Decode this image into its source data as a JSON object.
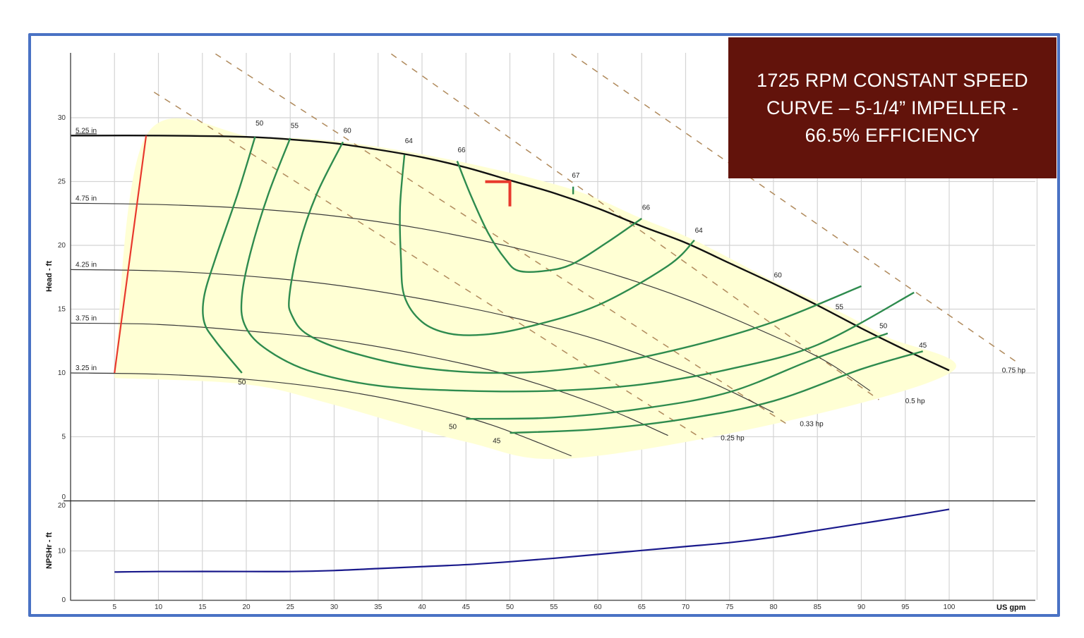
{
  "title_box": {
    "line1": "1725 RPM CONSTANT SPEED",
    "line2": "CURVE – 5-1/4” IMPELLER -",
    "line3": "66.5% EFFICIENCY",
    "background": "#62130b"
  },
  "colors": {
    "frame_border": "#4a72c4",
    "grid": "#d4d4d4",
    "impeller": "#3a3a3a",
    "max_impeller": "#111111",
    "efficiency": "#2e8b4e",
    "power": "#b08a5c",
    "min_flow": "#e8392d",
    "operating_region": "#ffffd4",
    "npsh": "#1a1a8c",
    "marker": "#e8392d"
  },
  "chart_data": [
    {
      "type": "line",
      "title": "Pump performance curve (Head vs Flow)",
      "xlabel": "US gpm",
      "ylabel": "Head - ft",
      "xlim": [
        0,
        110
      ],
      "ylim": [
        0,
        35
      ],
      "x_ticks": [
        5,
        10,
        15,
        20,
        25,
        30,
        35,
        40,
        45,
        50,
        55,
        60,
        65,
        70,
        75,
        80,
        85,
        90,
        95,
        100
      ],
      "y_ticks": [
        0,
        5,
        10,
        15,
        20,
        25,
        30
      ],
      "grid": true,
      "impeller_curves": [
        {
          "name": "5.25 in",
          "points": [
            [
              0,
              28.6
            ],
            [
              10,
              28.6
            ],
            [
              20,
              28.5
            ],
            [
              25,
              28.3
            ],
            [
              30,
              28.0
            ],
            [
              35,
              27.5
            ],
            [
              40,
              26.9
            ],
            [
              45,
              26.1
            ],
            [
              50,
              25.1
            ],
            [
              55,
              24.1
            ],
            [
              60,
              22.9
            ],
            [
              65,
              21.5
            ],
            [
              70,
              20.2
            ],
            [
              75,
              18.6
            ],
            [
              80,
              17.0
            ],
            [
              85,
              15.3
            ],
            [
              90,
              13.5
            ],
            [
              95,
              11.8
            ],
            [
              100,
              10.2
            ]
          ]
        },
        {
          "name": "4.75 in",
          "points": [
            [
              0,
              23.3
            ],
            [
              10,
              23.2
            ],
            [
              20,
              22.9
            ],
            [
              30,
              22.3
            ],
            [
              40,
              21.3
            ],
            [
              50,
              19.9
            ],
            [
              60,
              18.1
            ],
            [
              70,
              15.8
            ],
            [
              80,
              12.9
            ],
            [
              86,
              10.9
            ],
            [
              91,
              8.6
            ]
          ]
        },
        {
          "name": "4.25 in",
          "points": [
            [
              0,
              18.1
            ],
            [
              10,
              18.0
            ],
            [
              20,
              17.6
            ],
            [
              30,
              16.9
            ],
            [
              40,
              15.8
            ],
            [
              50,
              14.4
            ],
            [
              60,
              12.6
            ],
            [
              70,
              10.1
            ],
            [
              75,
              8.6
            ],
            [
              80,
              6.9
            ]
          ]
        },
        {
          "name": "3.75 in",
          "points": [
            [
              0,
              13.9
            ],
            [
              10,
              13.8
            ],
            [
              20,
              13.3
            ],
            [
              30,
              12.6
            ],
            [
              40,
              11.4
            ],
            [
              50,
              9.8
            ],
            [
              60,
              7.5
            ],
            [
              68,
              5.1
            ]
          ]
        },
        {
          "name": "3.25 in",
          "points": [
            [
              0,
              10.0
            ],
            [
              10,
              9.9
            ],
            [
              20,
              9.5
            ],
            [
              30,
              8.7
            ],
            [
              40,
              7.4
            ],
            [
              48,
              5.9
            ],
            [
              57,
              3.5
            ]
          ]
        }
      ],
      "efficiency_curves": [
        {
          "name": "50 (left)",
          "label": "50",
          "points": [
            [
              21,
              28.5
            ],
            [
              19,
              24
            ],
            [
              16.5,
              19
            ],
            [
              15.2,
              16
            ],
            [
              15.2,
              14
            ],
            [
              16.5,
              12.5
            ],
            [
              19.5,
              10
            ]
          ]
        },
        {
          "name": "55 (left)",
          "label": "55",
          "points": [
            [
              25,
              28.4
            ],
            [
              22.5,
              24
            ],
            [
              20.5,
              19.5
            ],
            [
              19.5,
              16
            ],
            [
              19.8,
              13.8
            ],
            [
              22,
              12
            ],
            [
              27,
              10.2
            ],
            [
              35,
              9
            ],
            [
              45,
              8.6
            ],
            [
              55,
              8.6
            ],
            [
              65,
              9.1
            ],
            [
              75,
              10.3
            ],
            [
              85,
              12.2
            ],
            [
              96,
              16.3
            ]
          ]
        },
        {
          "name": "60",
          "label": "60",
          "points": [
            [
              31,
              28.1
            ],
            [
              28,
              24
            ],
            [
              26,
              20
            ],
            [
              24.9,
              16
            ],
            [
              25.2,
              14.5
            ],
            [
              27,
              13
            ],
            [
              32,
              11.6
            ],
            [
              40,
              10.4
            ],
            [
              50,
              10
            ],
            [
              60,
              10.6
            ],
            [
              70,
              12
            ],
            [
              80,
              14
            ],
            [
              90,
              16.8
            ]
          ]
        },
        {
          "name": "64",
          "label": "64",
          "points": [
            [
              38,
              27.1
            ],
            [
              37.5,
              23
            ],
            [
              37.6,
              19
            ],
            [
              38,
              16
            ],
            [
              40,
              14
            ],
            [
              43,
              13.1
            ],
            [
              47,
              13
            ],
            [
              52,
              13.6
            ],
            [
              60,
              15.3
            ],
            [
              68,
              18.4
            ],
            [
              71,
              20.4
            ]
          ]
        },
        {
          "name": "66",
          "label": "66",
          "points": [
            [
              44,
              26.6
            ],
            [
              45.5,
              24
            ],
            [
              47.5,
              21
            ],
            [
              49.5,
              18.9
            ],
            [
              51,
              18
            ],
            [
              54,
              18
            ],
            [
              57,
              18.5
            ],
            [
              61,
              20.2
            ],
            [
              65,
              22.1
            ]
          ]
        },
        {
          "name": "67",
          "label": "67",
          "points": [
            [
              57.2,
              24.6
            ],
            [
              57.2,
              24.0
            ]
          ]
        },
        {
          "name": "50 (bottom)",
          "label": "50",
          "points": [
            [
              45,
              6.4
            ],
            [
              55,
              6.5
            ],
            [
              65,
              7.2
            ],
            [
              75,
              8.5
            ],
            [
              85,
              11.2
            ],
            [
              93,
              13.1
            ]
          ]
        },
        {
          "name": "45",
          "label": "45",
          "points": [
            [
              50,
              5.3
            ],
            [
              60,
              5.6
            ],
            [
              70,
              6.4
            ],
            [
              80,
              7.8
            ],
            [
              90,
              10.3
            ],
            [
              97,
              11.7
            ]
          ]
        }
      ],
      "efficiency_labels": [
        {
          "text": "50",
          "x": 21.5,
          "y": 29.4
        },
        {
          "text": "55",
          "x": 25.5,
          "y": 29.2
        },
        {
          "text": "60",
          "x": 31.5,
          "y": 28.8
        },
        {
          "text": "64",
          "x": 38.5,
          "y": 28.0
        },
        {
          "text": "66",
          "x": 44.5,
          "y": 27.3
        },
        {
          "text": "67",
          "x": 57.5,
          "y": 25.3
        },
        {
          "text": "66",
          "x": 65.5,
          "y": 22.8
        },
        {
          "text": "64",
          "x": 71.5,
          "y": 21.0
        },
        {
          "text": "60",
          "x": 80.5,
          "y": 17.5
        },
        {
          "text": "55",
          "x": 87.5,
          "y": 15.0
        },
        {
          "text": "50",
          "x": 92.5,
          "y": 13.5
        },
        {
          "text": "45",
          "x": 97,
          "y": 12.0
        },
        {
          "text": "50",
          "x": 19.5,
          "y": 9.1
        },
        {
          "text": "50",
          "x": 43.5,
          "y": 5.6
        },
        {
          "text": "45",
          "x": 48.5,
          "y": 4.5
        }
      ],
      "power_lines": [
        {
          "name": "0.25 hp",
          "points": [
            [
              9.5,
              32
            ],
            [
              72,
              4.8
            ]
          ],
          "label_at": [
            74,
            4.9
          ]
        },
        {
          "name": "0.33 hp",
          "points": [
            [
              16.5,
              35
            ],
            [
              81.5,
              6
            ]
          ],
          "label_at": [
            83,
            6.0
          ]
        },
        {
          "name": "0.5 hp",
          "points": [
            [
              36.5,
              35
            ],
            [
              92,
              7.9
            ]
          ],
          "label_at": [
            95,
            7.8
          ]
        },
        {
          "name": "0.75 hp",
          "points": [
            [
              57,
              35
            ],
            [
              108,
              10.7
            ]
          ],
          "label_at": [
            106,
            10.2
          ]
        }
      ],
      "min_flow_line": {
        "points": [
          [
            5,
            10.0
          ],
          [
            8.6,
            28.6
          ]
        ]
      },
      "operating_region": [
        [
          5,
          10.0
        ],
        [
          8.6,
          28.6
        ],
        [
          21,
          28.5
        ],
        [
          31,
          28.1
        ],
        [
          44,
          26.6
        ],
        [
          57,
          24.4
        ],
        [
          65,
          22.1
        ],
        [
          71,
          20.4
        ],
        [
          80,
          17.2
        ],
        [
          87.5,
          14.8
        ],
        [
          93,
          12.8
        ],
        [
          100.5,
          10.2
        ],
        [
          82,
          6.3
        ],
        [
          57,
          3.3
        ],
        [
          45,
          4.6
        ],
        [
          30,
          7.5
        ],
        [
          20,
          9.1
        ],
        [
          5,
          9.6
        ]
      ],
      "impeller_labels": [
        "5.25 in",
        "4.75 in",
        "4.25 in",
        "3.75 in",
        "3.25 in"
      ],
      "marker": {
        "type": "corner",
        "x": 50,
        "y": 25.1
      }
    },
    {
      "type": "line",
      "title": "NPSHr vs Flow",
      "xlabel": "US gpm",
      "ylabel": "NPSHr - ft",
      "xlim": [
        0,
        110
      ],
      "ylim": [
        0,
        20
      ],
      "y_ticks": [
        0,
        10,
        20
      ],
      "series": [
        {
          "name": "NPSHr",
          "points": [
            [
              5,
              5.7
            ],
            [
              10,
              5.8
            ],
            [
              20,
              5.8
            ],
            [
              25,
              5.8
            ],
            [
              30,
              6.0
            ],
            [
              35,
              6.4
            ],
            [
              40,
              6.8
            ],
            [
              45,
              7.2
            ],
            [
              50,
              7.8
            ],
            [
              55,
              8.5
            ],
            [
              60,
              9.3
            ],
            [
              65,
              10.1
            ],
            [
              70,
              10.9
            ],
            [
              75,
              11.7
            ],
            [
              80,
              12.8
            ],
            [
              85,
              14.2
            ],
            [
              90,
              15.6
            ],
            [
              95,
              17.0
            ],
            [
              100,
              18.5
            ]
          ]
        }
      ]
    }
  ],
  "axes": {
    "x_title": "US gpm",
    "head_title": "Head - ft",
    "npsh_title": "NPSHr - ft"
  }
}
